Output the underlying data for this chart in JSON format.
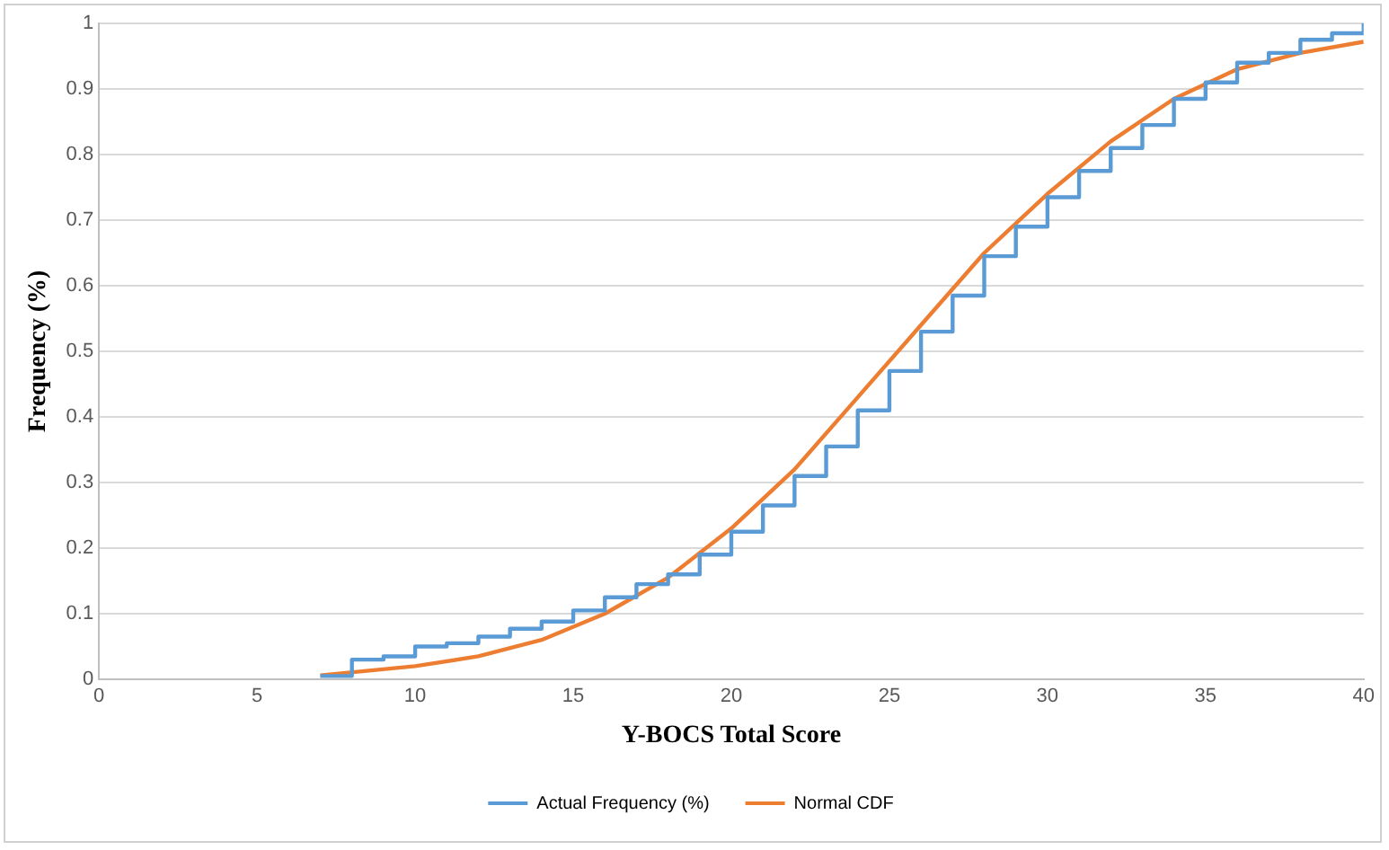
{
  "chart_data": {
    "type": "line",
    "xlabel": "Y-BOCS Total Score",
    "ylabel": "Frequency (%)",
    "xlim": [
      0,
      40
    ],
    "xticks": [
      0,
      5,
      10,
      15,
      20,
      25,
      30,
      35,
      40
    ],
    "ylim": [
      0,
      1
    ],
    "yticks": [
      0,
      0.1,
      0.2,
      0.3,
      0.4,
      0.5,
      0.6,
      0.7,
      0.8,
      0.9,
      1
    ],
    "grid": "y",
    "legend": "bottom",
    "marker": "none",
    "series": [
      {
        "name": "Actual Frequency (%)",
        "type": "step",
        "color": "#5b9bd5",
        "x": [
          7,
          8,
          9,
          10,
          11,
          12,
          13,
          14,
          15,
          16,
          17,
          18,
          19,
          20,
          21,
          22,
          23,
          24,
          25,
          26,
          27,
          28,
          29,
          30,
          31,
          32,
          33,
          34,
          35,
          36,
          37,
          38,
          39,
          40
        ],
        "values": [
          0.005,
          0.03,
          0.035,
          0.05,
          0.055,
          0.065,
          0.077,
          0.088,
          0.105,
          0.125,
          0.145,
          0.16,
          0.19,
          0.225,
          0.265,
          0.31,
          0.355,
          0.41,
          0.47,
          0.53,
          0.585,
          0.645,
          0.69,
          0.735,
          0.775,
          0.81,
          0.845,
          0.885,
          0.91,
          0.94,
          0.955,
          0.975,
          0.985,
          1.0
        ]
      },
      {
        "name": "Normal CDF",
        "type": "line",
        "color": "#ed7d31",
        "x": [
          7,
          10,
          12,
          14,
          16,
          18,
          20,
          22,
          24,
          26,
          28,
          30,
          32,
          34,
          36,
          38,
          40
        ],
        "values": [
          0.006,
          0.02,
          0.035,
          0.06,
          0.1,
          0.155,
          0.23,
          0.32,
          0.43,
          0.54,
          0.65,
          0.74,
          0.82,
          0.885,
          0.93,
          0.955,
          0.972
        ]
      }
    ]
  }
}
